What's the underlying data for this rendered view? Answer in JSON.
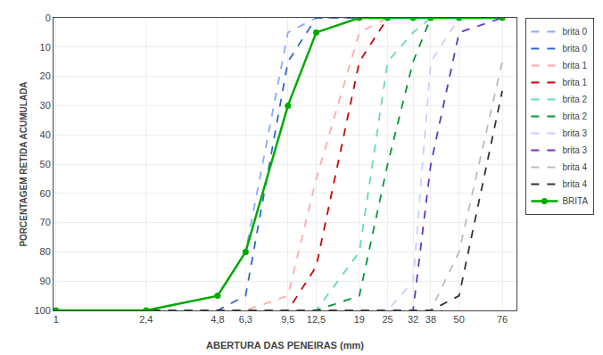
{
  "chart_data": {
    "type": "line",
    "xlabel": "ABERTURA DAS PENEIRAS (mm)",
    "ylabel": "PORCENTAGEM RETIDA ACUMULADA",
    "log": "x",
    "grid": true,
    "legend": "upper right",
    "xlim": [
      0.977,
      87.26
    ],
    "xticks": [
      1,
      {
        "value": 2.4,
        "label": "2,4"
      },
      {
        "value": 4.8,
        "label": "4,8"
      },
      {
        "value": 6.3,
        "label": "6,3"
      },
      {
        "value": 9.5,
        "label": "9,5"
      },
      {
        "value": 12.5,
        "label": "12,5"
      },
      19,
      25,
      32,
      38,
      50,
      76
    ],
    "ylim": [
      100,
      0
    ],
    "yticks": [
      0,
      10,
      20,
      30,
      40,
      50,
      60,
      70,
      80,
      90,
      100
    ],
    "x": [
      1,
      2.4,
      4.8,
      6.3,
      9.5,
      12.5,
      19,
      25,
      32,
      38,
      50,
      76
    ],
    "series": [
      {
        "name": "brita 0",
        "color": "#88aaff",
        "line_style": "dashed",
        "values": [
          100,
          100,
          95,
          80,
          5,
          0,
          0,
          0,
          0,
          0,
          0,
          0
        ]
      },
      {
        "name": "brita 0",
        "color": "#3366cc",
        "line_style": "dashed",
        "values": [
          100,
          100,
          100,
          95,
          15,
          0,
          0,
          0,
          0,
          0,
          0,
          0
        ]
      },
      {
        "name": "brita 1",
        "color": "#ffaaaa",
        "line_style": "dashed",
        "values": [
          100,
          100,
          100,
          100,
          95,
          55,
          5,
          0,
          0,
          0,
          0,
          0
        ]
      },
      {
        "name": "brita 1",
        "color": "#cc0000",
        "line_style": "dashed",
        "values": [
          100,
          100,
          100,
          100,
          100,
          85,
          15,
          0,
          0,
          0,
          0,
          0
        ]
      },
      {
        "name": "brita 2",
        "color": "#66ddaa",
        "line_style": "dashed",
        "values": [
          100,
          100,
          100,
          100,
          100,
          100,
          80,
          15,
          5,
          0,
          0,
          0
        ]
      },
      {
        "name": "brita 2",
        "color": "#009933",
        "line_style": "dashed",
        "values": [
          100,
          100,
          100,
          100,
          100,
          100,
          95,
          50,
          15,
          0,
          0,
          0
        ]
      },
      {
        "name": "brita 3",
        "color": "#ccccff",
        "line_style": "dashed",
        "values": [
          100,
          100,
          100,
          100,
          100,
          100,
          100,
          100,
          90,
          15,
          0,
          0
        ]
      },
      {
        "name": "brita 3",
        "color": "#6633cc",
        "line_style": "dashed",
        "values": [
          100,
          100,
          100,
          100,
          100,
          100,
          100,
          100,
          100,
          50,
          5,
          0
        ]
      },
      {
        "name": "brita 4",
        "color": "#bbbbbb",
        "line_style": "dashed",
        "values": [
          100,
          100,
          100,
          100,
          100,
          100,
          100,
          100,
          100,
          100,
          80,
          15
        ]
      },
      {
        "name": "brita 4",
        "color": "#333333",
        "line_style": "dashed",
        "values": [
          100,
          100,
          100,
          100,
          100,
          100,
          100,
          100,
          100,
          100,
          95,
          25
        ]
      },
      {
        "name": "BRITA",
        "color": "#00aa00",
        "line_style": "solid",
        "marker": "circle",
        "values": [
          100,
          100,
          95,
          80,
          30,
          5,
          0,
          0,
          0,
          0,
          0,
          0
        ]
      }
    ]
  }
}
